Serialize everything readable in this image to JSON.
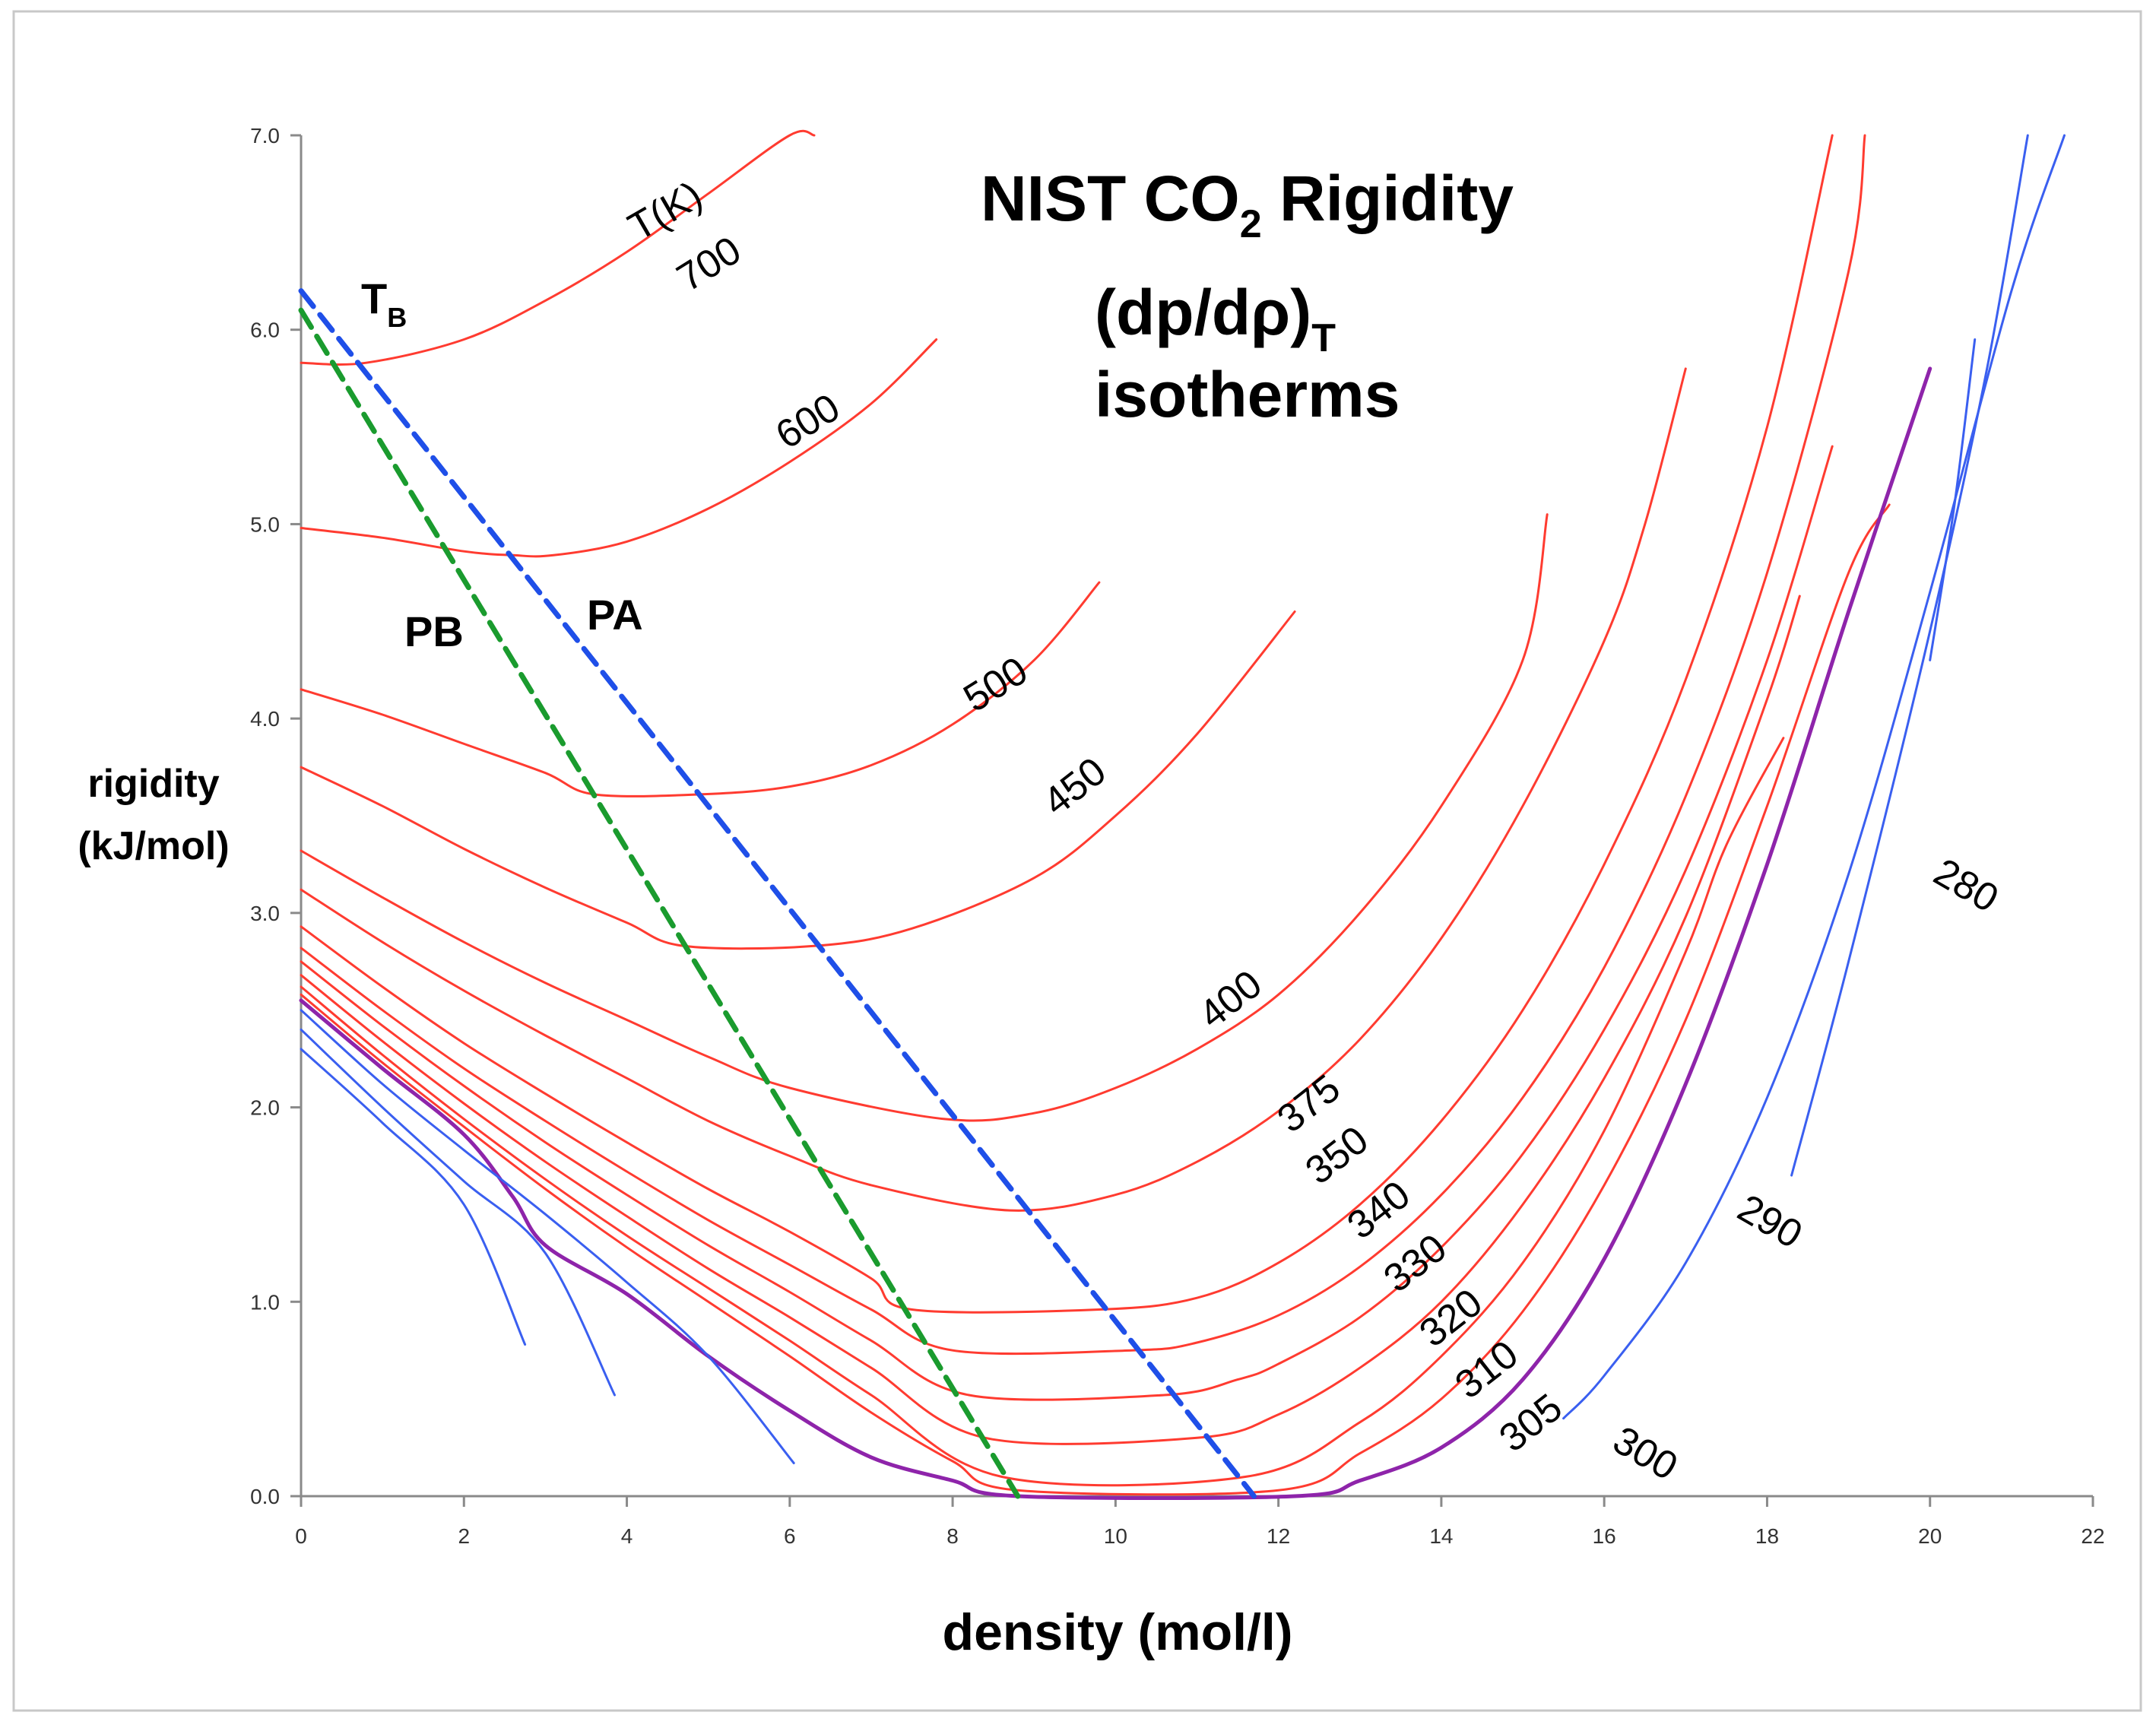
{
  "chart_data": {
    "type": "line",
    "title_lines": [
      "NIST CO",
      "2",
      " Rigidity",
      "(dp/dρ)",
      "T",
      "isotherms"
    ],
    "xlabel": "density (mol/l)",
    "ylabel_lines": [
      "rigidity",
      "(kJ/mol)"
    ],
    "xlim": [
      0,
      22
    ],
    "ylim": [
      0,
      7
    ],
    "x_ticks": [
      "0",
      "2",
      "4",
      "6",
      "8",
      "10",
      "12",
      "14",
      "16",
      "18",
      "20",
      "22"
    ],
    "y_ticks": [
      "0.0",
      "1.0",
      "2.0",
      "3.0",
      "4.0",
      "5.0",
      "6.0",
      "7.0"
    ],
    "colors": {
      "supercritical": "#ff3b30",
      "subcritical": "#3a5ff0",
      "critical": "#8e24aa",
      "PA": "#1f4fe8",
      "PB": "#1a9b2e"
    },
    "temperature_header": "T(K)",
    "series": [
      {
        "name": "700",
        "label": "700",
        "kind": "supercritical",
        "x": [
          0,
          0.8,
          2,
          3,
          4,
          5,
          6,
          6.3
        ],
        "y": [
          5.83,
          5.83,
          5.95,
          6.15,
          6.4,
          6.7,
          7.0,
          7.0
        ]
      },
      {
        "name": "600",
        "label": "600",
        "kind": "supercritical",
        "x": [
          0,
          1,
          2,
          2.6,
          3.1,
          4,
          5,
          6,
          7,
          7.8
        ],
        "y": [
          4.98,
          4.93,
          4.86,
          4.84,
          4.84,
          4.91,
          5.08,
          5.32,
          5.62,
          5.95
        ]
      },
      {
        "name": "500",
        "label": "500",
        "kind": "supercritical",
        "x": [
          0,
          1,
          2,
          3,
          3.6,
          4.9,
          6,
          7,
          8,
          9,
          9.8
        ],
        "y": [
          4.15,
          4.02,
          3.87,
          3.72,
          3.61,
          3.61,
          3.65,
          3.76,
          3.97,
          4.3,
          4.7
        ]
      },
      {
        "name": "450",
        "label": "450",
        "kind": "supercritical",
        "x": [
          0,
          1,
          2,
          3,
          4,
          4.7,
          6.3,
          7.5,
          9,
          10,
          11,
          12.2
        ],
        "y": [
          3.75,
          3.55,
          3.33,
          3.13,
          2.95,
          2.83,
          2.83,
          2.92,
          3.18,
          3.5,
          3.92,
          4.55
        ]
      },
      {
        "name": "400",
        "label": "400",
        "kind": "supercritical",
        "x": [
          0,
          1,
          2,
          3,
          4,
          5,
          6,
          7.9,
          9,
          10,
          11,
          12,
          13,
          14,
          15,
          15.3
        ],
        "y": [
          3.32,
          3.08,
          2.85,
          2.64,
          2.45,
          2.26,
          2.1,
          1.94,
          1.97,
          2.1,
          2.3,
          2.58,
          3.0,
          3.55,
          4.3,
          5.05
        ]
      },
      {
        "name": "375",
        "label": "375",
        "kind": "supercritical",
        "x": [
          0,
          1,
          2,
          3,
          4,
          5,
          6,
          7,
          8.7,
          10,
          11,
          12,
          13,
          14,
          15,
          16,
          16.5,
          17.0
        ],
        "y": [
          3.12,
          2.85,
          2.6,
          2.37,
          2.15,
          1.93,
          1.75,
          1.6,
          1.47,
          1.55,
          1.72,
          1.98,
          2.35,
          2.87,
          3.55,
          4.4,
          5.0,
          5.8
        ]
      },
      {
        "name": "350",
        "label": "350",
        "kind": "supercritical",
        "x": [
          0,
          1,
          2,
          3,
          4,
          5,
          6,
          7,
          7.5,
          9.8,
          11,
          12,
          13,
          14,
          15,
          16,
          17,
          18,
          18.8
        ],
        "y": [
          2.93,
          2.62,
          2.33,
          2.07,
          1.82,
          1.58,
          1.36,
          1.12,
          0.96,
          0.96,
          1.02,
          1.2,
          1.5,
          1.93,
          2.5,
          3.25,
          4.2,
          5.5,
          7.0
        ]
      },
      {
        "name": "340",
        "label": "340",
        "kind": "supercritical",
        "x": [
          0,
          1,
          2,
          3,
          4,
          5,
          6,
          7,
          8.0,
          10.2,
          11,
          12,
          13,
          14,
          15,
          16,
          17,
          18,
          19,
          19.2
        ],
        "y": [
          2.82,
          2.5,
          2.2,
          1.93,
          1.67,
          1.42,
          1.19,
          0.96,
          0.75,
          0.75,
          0.79,
          0.93,
          1.18,
          1.55,
          2.05,
          2.72,
          3.6,
          4.75,
          6.3,
          7.0
        ]
      },
      {
        "name": "330",
        "label": "330",
        "kind": "supercritical",
        "x": [
          0,
          1,
          2,
          3,
          4,
          5,
          6,
          7,
          8.2,
          10.6,
          11.5,
          12,
          13,
          14,
          15,
          16,
          17,
          18,
          18.8
        ],
        "y": [
          2.75,
          2.42,
          2.11,
          1.82,
          1.55,
          1.29,
          1.05,
          0.8,
          0.52,
          0.52,
          0.6,
          0.68,
          0.92,
          1.28,
          1.76,
          2.4,
          3.22,
          4.3,
          5.4
        ]
      },
      {
        "name": "320",
        "label": "320",
        "kind": "supercritical",
        "x": [
          0,
          1,
          2,
          3,
          4,
          5,
          6,
          7,
          8.4,
          11.0,
          12,
          13,
          14,
          15,
          16,
          17,
          18,
          18.4
        ],
        "y": [
          2.68,
          2.34,
          2.02,
          1.72,
          1.44,
          1.17,
          0.92,
          0.66,
          0.3,
          0.3,
          0.42,
          0.66,
          1.0,
          1.5,
          2.15,
          2.98,
          4.1,
          4.63
        ]
      },
      {
        "name": "310",
        "label": "310",
        "kind": "supercritical",
        "x": [
          0,
          1,
          2,
          3,
          4,
          5,
          6,
          7,
          8.6,
          11.6,
          13,
          14,
          15,
          16,
          17,
          17.5,
          18.2
        ],
        "y": [
          2.62,
          2.27,
          1.94,
          1.63,
          1.34,
          1.07,
          0.8,
          0.52,
          0.1,
          0.1,
          0.38,
          0.72,
          1.2,
          1.88,
          2.8,
          3.35,
          3.9
        ]
      },
      {
        "name": "305",
        "label": "305",
        "kind": "supercritical",
        "x": [
          0,
          1,
          2,
          3,
          4,
          5,
          6,
          7,
          8,
          8.8,
          12.0,
          13,
          14,
          15,
          16,
          17,
          18,
          19,
          19.5
        ],
        "y": [
          2.58,
          2.23,
          1.9,
          1.58,
          1.28,
          1.0,
          0.72,
          0.43,
          0.18,
          0.03,
          0.03,
          0.22,
          0.5,
          0.95,
          1.6,
          2.45,
          3.55,
          4.75,
          5.1
        ]
      },
      {
        "name": "critical",
        "label": "",
        "kind": "critical",
        "x": [
          0,
          1,
          2,
          2.6,
          3,
          4,
          5,
          6,
          7,
          8,
          8.8,
          12.2,
          13,
          14,
          15,
          16,
          17,
          18,
          19,
          20.0
        ],
        "y": [
          2.55,
          2.2,
          1.86,
          1.54,
          1.29,
          1.04,
          0.72,
          0.44,
          0.2,
          0.08,
          0.0,
          0.0,
          0.08,
          0.25,
          0.6,
          1.22,
          2.12,
          3.25,
          4.55,
          5.8
        ]
      },
      {
        "name": "300",
        "label": "300",
        "kind": "subcritical",
        "x": [
          0,
          1,
          2,
          3,
          4,
          5,
          6.05
        ],
        "y": [
          2.5,
          2.12,
          1.78,
          1.45,
          1.1,
          0.72,
          0.17
        ]
      },
      {
        "name": "300-liquid",
        "label": "",
        "kind": "subcritical",
        "x": [
          15.5,
          16,
          17,
          18,
          19,
          20,
          21.0,
          21.65
        ],
        "y": [
          0.4,
          0.62,
          1.2,
          2.05,
          3.2,
          4.65,
          6.2,
          7.0
        ]
      },
      {
        "name": "290",
        "label": "290",
        "kind": "subcritical",
        "x": [
          0,
          1,
          2,
          3,
          3.85
        ],
        "y": [
          2.4,
          2.0,
          1.62,
          1.25,
          0.52
        ]
      },
      {
        "name": "290-liquid",
        "label": "",
        "kind": "subcritical",
        "x": [
          18.3,
          19,
          20,
          20.7,
          21.2
        ],
        "y": [
          1.65,
          2.75,
          4.45,
          5.8,
          7.0
        ]
      },
      {
        "name": "280",
        "label": "280",
        "kind": "subcritical",
        "x": [
          0,
          1,
          2,
          2.75
        ],
        "y": [
          2.3,
          1.92,
          1.5,
          0.78
        ]
      },
      {
        "name": "280-liquid",
        "label": "",
        "kind": "subcritical",
        "x": [
          20.0,
          20.3,
          20.55
        ],
        "y": [
          4.3,
          5.1,
          5.95
        ]
      },
      {
        "name": "PA",
        "label": "PA",
        "kind": "PA",
        "x": [
          0,
          11.7
        ],
        "y": [
          6.2,
          0.0
        ]
      },
      {
        "name": "PB",
        "label": "PB",
        "kind": "PB",
        "x": [
          0,
          8.8
        ],
        "y": [
          6.1,
          0.0
        ]
      }
    ],
    "boyle_label": {
      "main": "T",
      "sub": "B"
    }
  }
}
